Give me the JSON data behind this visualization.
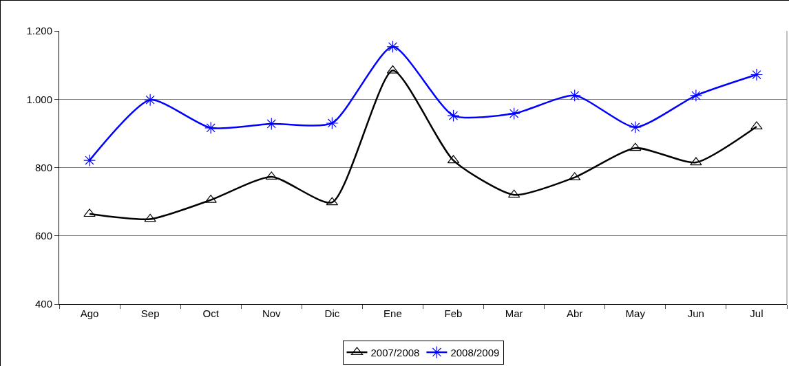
{
  "chart_data": {
    "type": "line",
    "categories": [
      "Ago",
      "Sep",
      "Oct",
      "Nov",
      "Dic",
      "Ene",
      "Feb",
      "Mar",
      "Abr",
      "May",
      "Jun",
      "Jul"
    ],
    "series": [
      {
        "name": "2007/2008",
        "color": "#000000",
        "marker": "triangle",
        "values": [
          664,
          649,
          705,
          773,
          698,
          1084,
          821,
          720,
          771,
          857,
          815,
          920
        ]
      },
      {
        "name": "2008/2009",
        "color": "#0000ff",
        "marker": "cross",
        "values": [
          821,
          998,
          916,
          928,
          930,
          1154,
          952,
          958,
          1011,
          918,
          1011,
          1072
        ]
      }
    ],
    "ylim": [
      400,
      1200
    ],
    "yticks": [
      {
        "value": 400,
        "label": "400"
      },
      {
        "value": 600,
        "label": "600"
      },
      {
        "value": 800,
        "label": "800"
      },
      {
        "value": 1000,
        "label": "1.000"
      },
      {
        "value": 1200,
        "label": "1.200"
      }
    ],
    "grid": "y",
    "legend": "bottom",
    "line_style": "solid"
  }
}
